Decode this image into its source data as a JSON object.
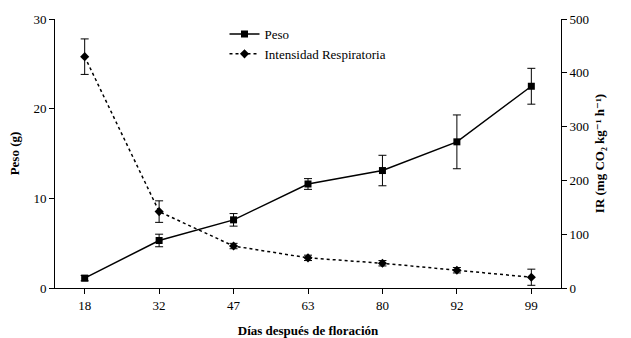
{
  "chart_data": {
    "type": "line",
    "x_label": "Días después de floración",
    "y_label": "Peso (g)",
    "y2_label": "IR (mg CO₂ kg⁻¹ h⁻¹)",
    "categories": [
      "18",
      "32",
      "47",
      "63",
      "80",
      "92",
      "99"
    ],
    "series": [
      {
        "name": "Peso",
        "color": "#000000",
        "marker": "square",
        "line_style": "solid",
        "values": [
          1.1,
          5.3,
          7.6,
          11.6,
          13.1,
          16.3,
          22.5
        ],
        "error": [
          0.3,
          0.7,
          0.7,
          0.6,
          1.7,
          3.0,
          2.0
        ]
      },
      {
        "name": "Intensidad Respiratoria",
        "color": "#000000",
        "marker": "diamond",
        "line_style": "dot",
        "axis": "y2",
        "values": [
          430,
          142,
          78,
          56,
          46,
          33,
          20
        ],
        "error": [
          33,
          20,
          5,
          5,
          5,
          5,
          15
        ]
      }
    ],
    "ylim": [
      0,
      30
    ],
    "yticks": [
      0,
      10,
      20,
      30
    ],
    "y2lim": [
      0,
      500
    ],
    "y2ticks": [
      0,
      100,
      200,
      300,
      400,
      500
    ],
    "grid": false,
    "legend": "top"
  }
}
